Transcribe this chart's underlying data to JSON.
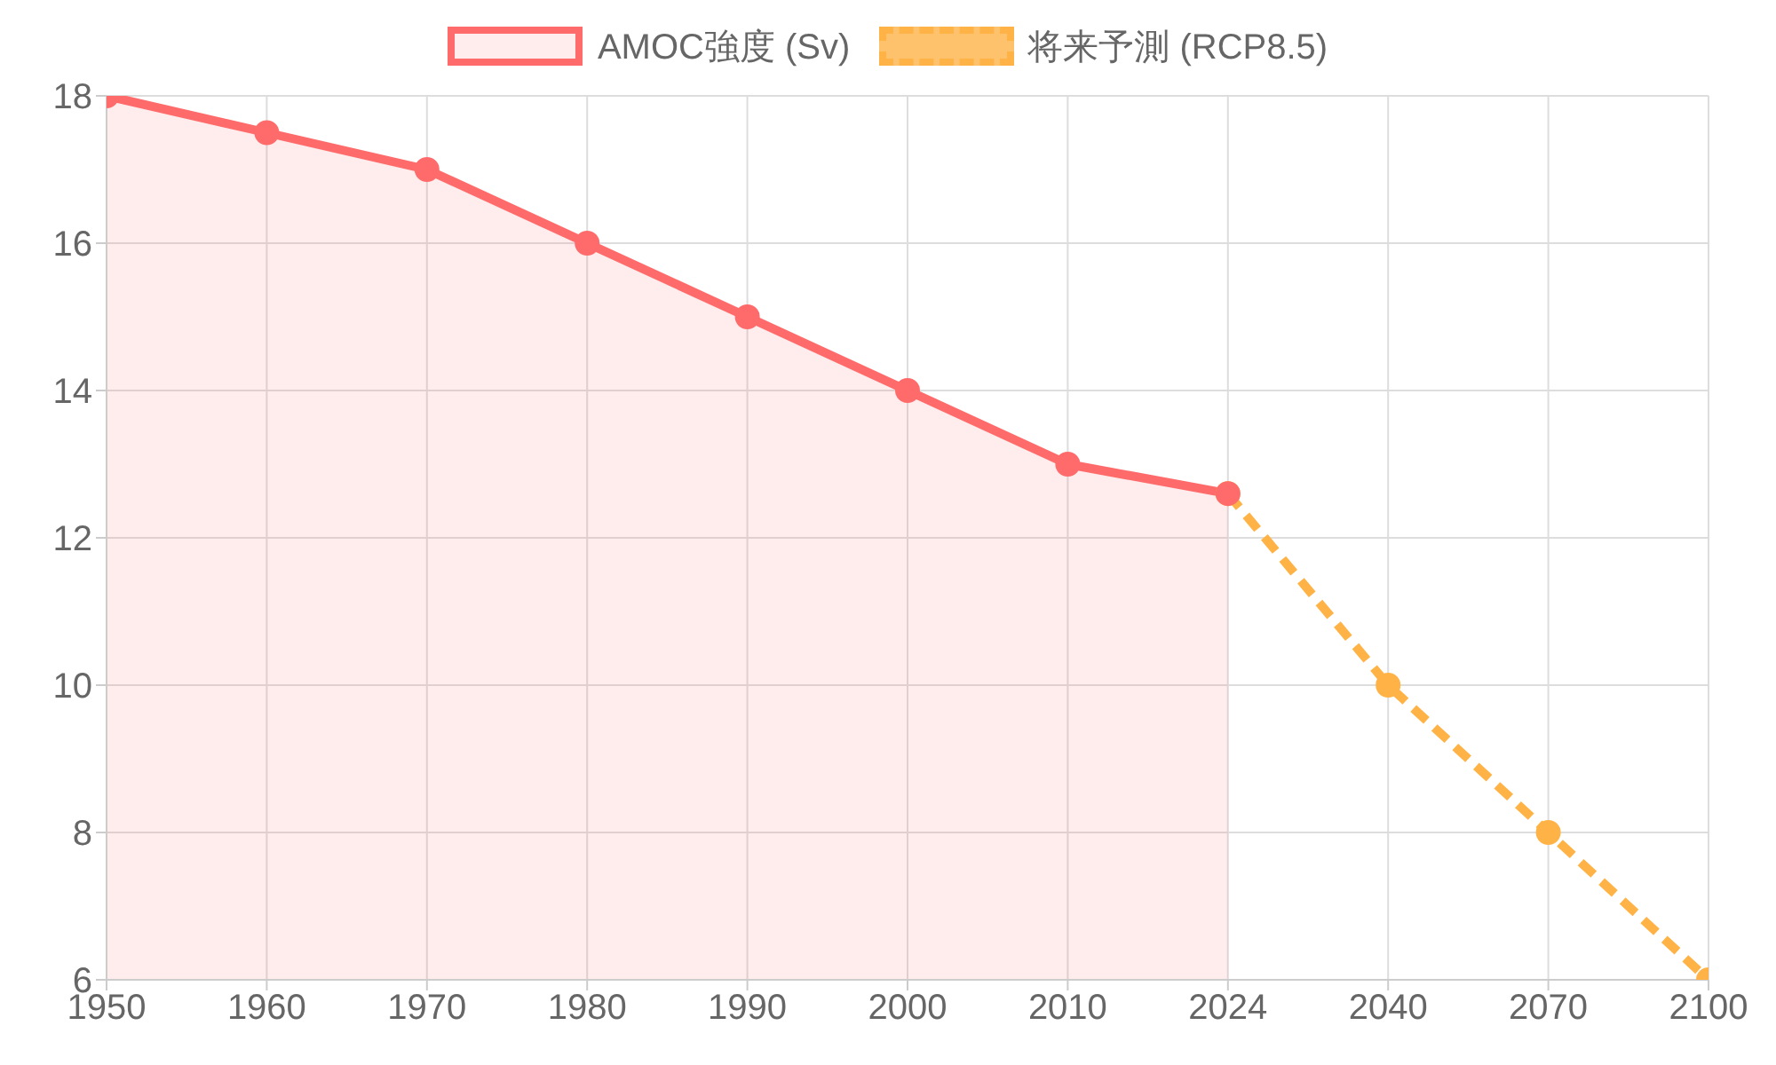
{
  "chart_data": {
    "type": "line",
    "categories": [
      "1950",
      "1960",
      "1970",
      "1980",
      "1990",
      "2000",
      "2010",
      "2024",
      "2040",
      "2070",
      "2100"
    ],
    "series": [
      {
        "name": "AMOC強度 (Sv)",
        "type": "area",
        "color": "#ff6b6b",
        "values": [
          18,
          17.5,
          17,
          16,
          15,
          14,
          13,
          12.6,
          null,
          null,
          null
        ]
      },
      {
        "name": "将来予測 (RCP8.5)",
        "type": "line",
        "color": "#ffb347",
        "line_style": "dashed",
        "values": [
          null,
          null,
          null,
          null,
          null,
          null,
          null,
          12.6,
          10,
          8,
          6
        ]
      }
    ],
    "ylim": [
      6,
      18
    ],
    "yticks": [
      6,
      8,
      10,
      12,
      14,
      16,
      18
    ],
    "grid": true,
    "legend": "top",
    "marker": "circle"
  }
}
